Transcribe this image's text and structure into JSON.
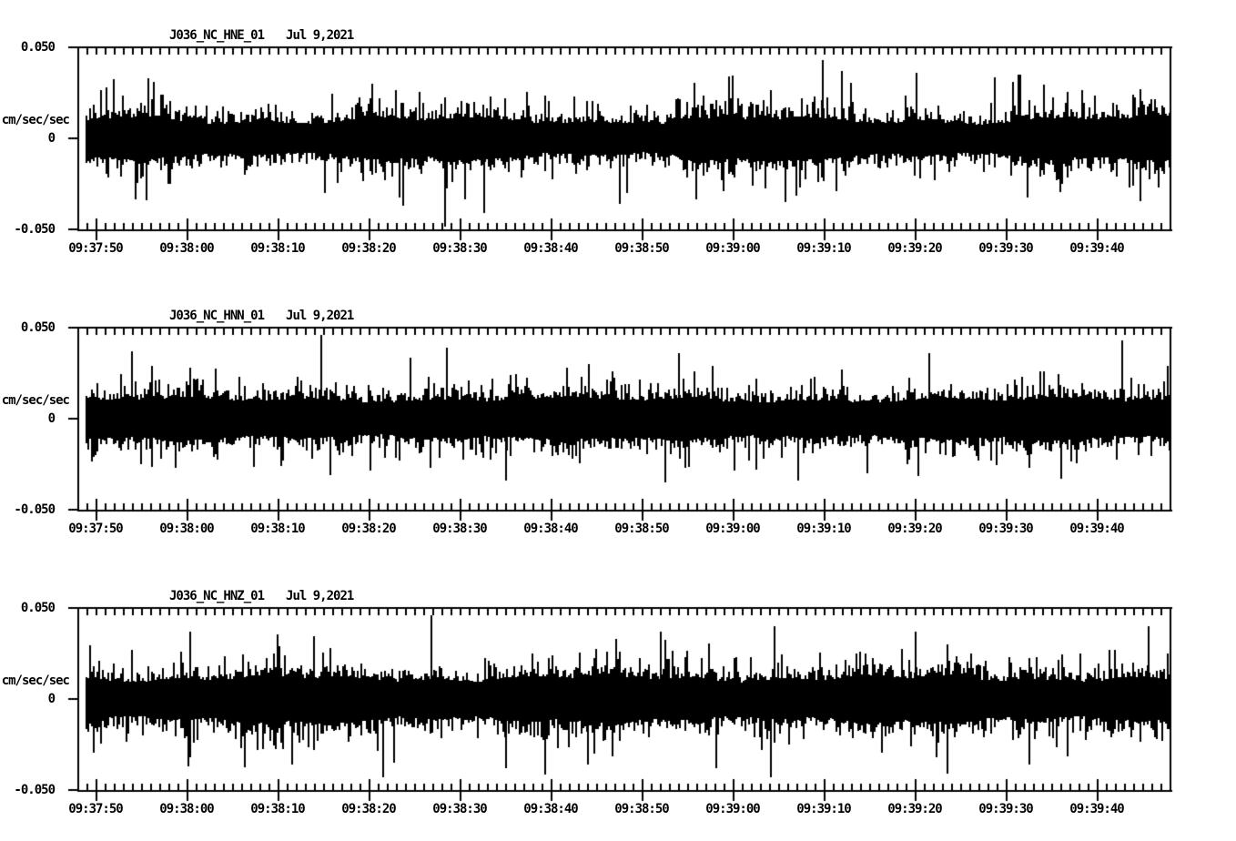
{
  "page": {
    "background": "#ffffff",
    "ink": "#000000"
  },
  "chart_data": [
    {
      "type": "line",
      "channel": "HNE",
      "title_station": "J036_NC_HNE_01",
      "title_date": "Jul 9,2021",
      "ylabel": "cm/sec/sec",
      "ylim": [
        -0.05,
        0.05
      ],
      "yticks": [
        {
          "value": 0.05,
          "label": "0.050"
        },
        {
          "value": 0,
          "label": "0"
        },
        {
          "value": -0.05,
          "label": "-0.050"
        }
      ],
      "x_origin_time": "09:37:48",
      "x_span_s": 120.2,
      "minor_tick_interval_s": 1,
      "major_tick_interval_s": 10,
      "xticks": [
        {
          "t": 2,
          "label": "09:37:50"
        },
        {
          "t": 12,
          "label": "09:38:00"
        },
        {
          "t": 22,
          "label": "09:38:10"
        },
        {
          "t": 32,
          "label": "09:38:20"
        },
        {
          "t": 42,
          "label": "09:38:30"
        },
        {
          "t": 52,
          "label": "09:38:40"
        },
        {
          "t": 62,
          "label": "09:38:50"
        },
        {
          "t": 72,
          "label": "09:39:00"
        },
        {
          "t": 82,
          "label": "09:39:10"
        },
        {
          "t": 92,
          "label": "09:39:20"
        },
        {
          "t": 102,
          "label": "09:39:30"
        },
        {
          "t": 112,
          "label": "09:39:40"
        }
      ],
      "waveform_model": {
        "description": "zero-mean broadband acceleration noise band, solid core about +/-0.012 with frequent 1-2px spikes to +/-0.03 and rare spikes near +/-0.04",
        "seed": 42,
        "core_amp": 0.0095,
        "tail_amp": 0.0042,
        "spike_boost_prob": 0.009,
        "spike_boost_gain": 1.45,
        "amp_cap": 0.0485,
        "envelope": [
          {
            "amp": 0.16,
            "period_s": 37,
            "phase": 1.2
          },
          {
            "amp": 0.09,
            "period_s": 12.3,
            "phase": 4.0
          }
        ],
        "data_t_range": [
          0.9,
          119.9
        ],
        "peaks": [
          {
            "t": 7.5,
            "a": -0.034
          },
          {
            "t": 8.3,
            "a": 0.031
          },
          {
            "t": 44.6,
            "a": -0.041
          },
          {
            "t": 59.5,
            "a": -0.036
          },
          {
            "t": 71.5,
            "a": 0.034
          },
          {
            "t": 77.7,
            "a": -0.035
          },
          {
            "t": 81.8,
            "a": 0.043
          },
          {
            "t": 83.9,
            "a": 0.037
          },
          {
            "t": 103.5,
            "a": 0.035
          }
        ]
      }
    },
    {
      "type": "line",
      "channel": "HNN",
      "title_station": "J036_NC_HNN_01",
      "title_date": "Jul 9,2021",
      "ylabel": "cm/sec/sec",
      "ylim": [
        -0.05,
        0.05
      ],
      "yticks": [
        {
          "value": 0.05,
          "label": "0.050"
        },
        {
          "value": 0,
          "label": "0"
        },
        {
          "value": -0.05,
          "label": "-0.050"
        }
      ],
      "x_origin_time": "09:37:48",
      "x_span_s": 120.2,
      "minor_tick_interval_s": 1,
      "major_tick_interval_s": 10,
      "xticks": [
        {
          "t": 2,
          "label": "09:37:50"
        },
        {
          "t": 12,
          "label": "09:38:00"
        },
        {
          "t": 22,
          "label": "09:38:10"
        },
        {
          "t": 32,
          "label": "09:38:20"
        },
        {
          "t": 42,
          "label": "09:38:30"
        },
        {
          "t": 52,
          "label": "09:38:40"
        },
        {
          "t": 62,
          "label": "09:38:50"
        },
        {
          "t": 72,
          "label": "09:39:00"
        },
        {
          "t": 82,
          "label": "09:39:10"
        },
        {
          "t": 92,
          "label": "09:39:20"
        },
        {
          "t": 102,
          "label": "09:39:30"
        },
        {
          "t": 112,
          "label": "09:39:40"
        }
      ],
      "waveform_model": {
        "description": "fairly uniform noise band, tallest spike near 09:38:15 reaching about +0.046",
        "seed": 77,
        "core_amp": 0.01,
        "tail_amp": 0.004,
        "spike_boost_prob": 0.009,
        "spike_boost_gain": 1.4,
        "amp_cap": 0.0485,
        "envelope": [
          {
            "amp": 0.07,
            "period_s": 48,
            "phase": 0.5
          },
          {
            "amp": 0.07,
            "period_s": 13.7,
            "phase": 2.2
          }
        ],
        "data_t_range": [
          0.9,
          119.9
        ],
        "peaks": [
          {
            "t": 5.9,
            "a": 0.037
          },
          {
            "t": 26.7,
            "a": 0.046
          },
          {
            "t": 40.5,
            "a": 0.039
          },
          {
            "t": 47.0,
            "a": -0.034
          },
          {
            "t": 66.0,
            "a": 0.036
          },
          {
            "t": 93.5,
            "a": 0.036
          },
          {
            "t": 108.0,
            "a": -0.033
          },
          {
            "t": 114.7,
            "a": 0.043
          }
        ]
      }
    },
    {
      "type": "line",
      "channel": "HNZ",
      "title_station": "J036_NC_HNZ_01",
      "title_date": "Jul 9,2021",
      "ylabel": "cm/sec/sec",
      "ylim": [
        -0.05,
        0.05
      ],
      "yticks": [
        {
          "value": 0.05,
          "label": "0.050"
        },
        {
          "value": 0,
          "label": "0"
        },
        {
          "value": -0.05,
          "label": "-0.050"
        }
      ],
      "x_origin_time": "09:37:48",
      "x_span_s": 120.2,
      "minor_tick_interval_s": 1,
      "major_tick_interval_s": 10,
      "xticks": [
        {
          "t": 2,
          "label": "09:37:50"
        },
        {
          "t": 12,
          "label": "09:38:00"
        },
        {
          "t": 22,
          "label": "09:38:10"
        },
        {
          "t": 32,
          "label": "09:38:20"
        },
        {
          "t": 42,
          "label": "09:38:30"
        },
        {
          "t": 52,
          "label": "09:38:40"
        },
        {
          "t": 62,
          "label": "09:38:50"
        },
        {
          "t": 72,
          "label": "09:39:00"
        },
        {
          "t": 82,
          "label": "09:39:10"
        },
        {
          "t": 92,
          "label": "09:39:20"
        },
        {
          "t": 102,
          "label": "09:39:30"
        },
        {
          "t": 112,
          "label": "09:39:40"
        }
      ],
      "waveform_model": {
        "description": "slightly wider noise band, tallest spike near 09:38:27 reaching about +0.046",
        "seed": 99,
        "core_amp": 0.011,
        "tail_amp": 0.0044,
        "spike_boost_prob": 0.01,
        "spike_boost_gain": 1.4,
        "amp_cap": 0.0485,
        "envelope": [
          {
            "amp": 0.11,
            "period_s": 34,
            "phase": 3.6
          },
          {
            "amp": 0.08,
            "period_s": 9.5,
            "phase": 0.9
          }
        ],
        "data_t_range": [
          0.9,
          119.9
        ],
        "peaks": [
          {
            "t": 12.1,
            "a": -0.037
          },
          {
            "t": 23.5,
            "a": -0.036
          },
          {
            "t": 33.5,
            "a": -0.043
          },
          {
            "t": 38.8,
            "a": 0.046
          },
          {
            "t": 47.0,
            "a": -0.038
          },
          {
            "t": 56.0,
            "a": -0.036
          },
          {
            "t": 64.0,
            "a": 0.037
          },
          {
            "t": 76.5,
            "a": 0.04
          },
          {
            "t": 92.0,
            "a": 0.037
          },
          {
            "t": 104.5,
            "a": -0.036
          },
          {
            "t": 117.6,
            "a": 0.04
          }
        ]
      }
    }
  ]
}
